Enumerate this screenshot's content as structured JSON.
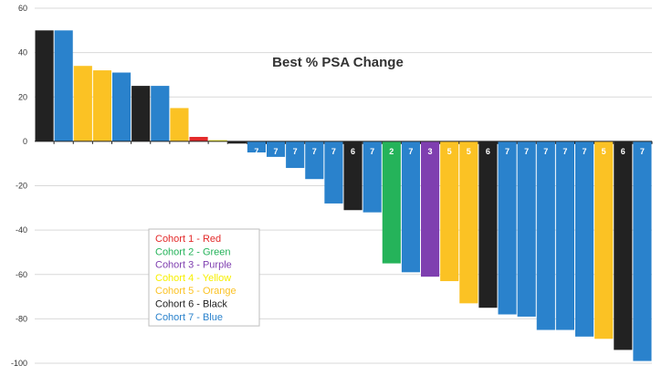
{
  "chart_data": {
    "type": "bar",
    "title": "Best % PSA Change",
    "xlabel": "",
    "ylabel": "",
    "ylim": [
      -100,
      60
    ],
    "yticks": [
      60,
      40,
      20,
      0,
      -20,
      -40,
      -60,
      -80,
      -100
    ],
    "grid": true,
    "legend_position": "bottom-left",
    "cohort_colors": {
      "1": "#e32a2a",
      "2": "#25b35a",
      "3": "#7f3fb0",
      "4": "#f7f000",
      "5": "#fbc224",
      "6": "#222222",
      "7": "#2a82cc"
    },
    "legend": [
      {
        "label": "Cohort 1 - Red",
        "color": "#e32a2a"
      },
      {
        "label": "Cohort 2 - Green",
        "color": "#25b35a"
      },
      {
        "label": "Cohort 3 - Purple",
        "color": "#7f3fb0"
      },
      {
        "label": "Cohort 4 - Yellow",
        "color": "#f7f000"
      },
      {
        "label": "Cohort 5 - Orange",
        "color": "#fbc224"
      },
      {
        "label": "Cohort 6 - Black",
        "color": "#222222"
      },
      {
        "label": "Cohort 7 - Blue",
        "color": "#2a82cc"
      }
    ],
    "bars": [
      {
        "cohort": "6",
        "value": 50,
        "label": ""
      },
      {
        "cohort": "7",
        "value": 50,
        "label": ""
      },
      {
        "cohort": "5",
        "value": 34,
        "label": ""
      },
      {
        "cohort": "5",
        "value": 32,
        "label": ""
      },
      {
        "cohort": "7",
        "value": 31,
        "label": ""
      },
      {
        "cohort": "6",
        "value": 25,
        "label": ""
      },
      {
        "cohort": "7",
        "value": 25,
        "label": ""
      },
      {
        "cohort": "5",
        "value": 15,
        "label": ""
      },
      {
        "cohort": "1",
        "value": 2,
        "label": ""
      },
      {
        "cohort": "4",
        "value": 0.5,
        "label": ""
      },
      {
        "cohort": "6",
        "value": -1,
        "label": ""
      },
      {
        "cohort": "7",
        "value": -5,
        "label": "7"
      },
      {
        "cohort": "7",
        "value": -7,
        "label": "7"
      },
      {
        "cohort": "7",
        "value": -12,
        "label": "7"
      },
      {
        "cohort": "7",
        "value": -17,
        "label": "7"
      },
      {
        "cohort": "7",
        "value": -28,
        "label": "7"
      },
      {
        "cohort": "6",
        "value": -31,
        "label": "6"
      },
      {
        "cohort": "7",
        "value": -32,
        "label": "7"
      },
      {
        "cohort": "2",
        "value": -55,
        "label": "2"
      },
      {
        "cohort": "7",
        "value": -59,
        "label": "7"
      },
      {
        "cohort": "3",
        "value": -61,
        "label": "3"
      },
      {
        "cohort": "5",
        "value": -63,
        "label": "5"
      },
      {
        "cohort": "5",
        "value": -73,
        "label": "5"
      },
      {
        "cohort": "6",
        "value": -75,
        "label": "6"
      },
      {
        "cohort": "7",
        "value": -78,
        "label": "7"
      },
      {
        "cohort": "7",
        "value": -79,
        "label": "7"
      },
      {
        "cohort": "7",
        "value": -85,
        "label": "7"
      },
      {
        "cohort": "7",
        "value": -85,
        "label": "7"
      },
      {
        "cohort": "7",
        "value": -88,
        "label": "7"
      },
      {
        "cohort": "5",
        "value": -89,
        "label": "5"
      },
      {
        "cohort": "6",
        "value": -94,
        "label": "6"
      },
      {
        "cohort": "7",
        "value": -99,
        "label": "7"
      }
    ]
  }
}
